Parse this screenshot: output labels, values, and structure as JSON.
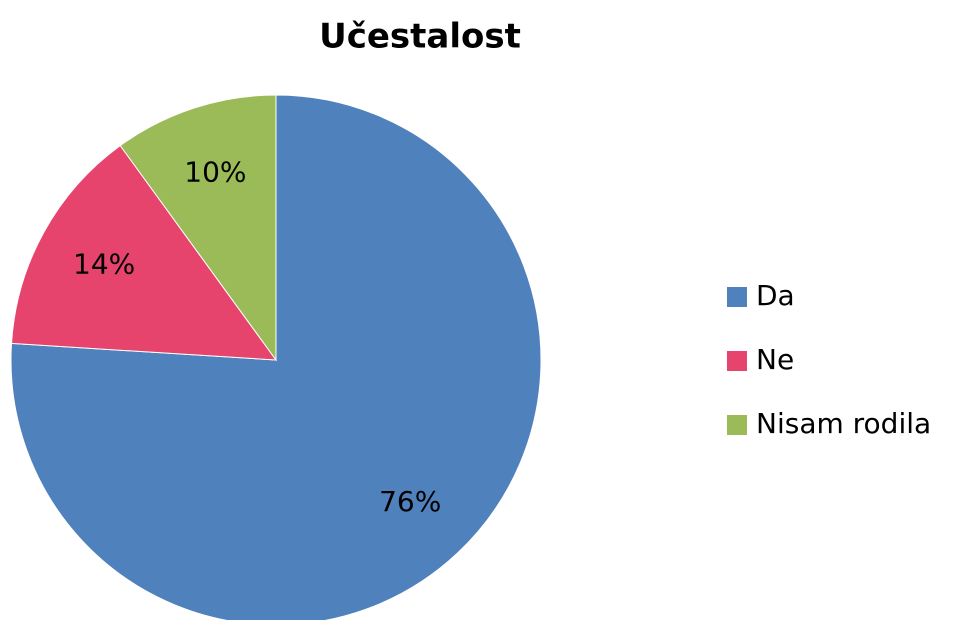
{
  "chart_data": {
    "type": "pie",
    "title": "Učestalost",
    "categories": [
      "Da",
      "Ne",
      "Nisam rodila"
    ],
    "values": [
      76,
      14,
      10
    ],
    "value_labels": [
      "76%",
      "14%",
      "10%"
    ],
    "colors": [
      "#4f81bd",
      "#e6446d",
      "#9bbb59"
    ],
    "legend": "right"
  }
}
